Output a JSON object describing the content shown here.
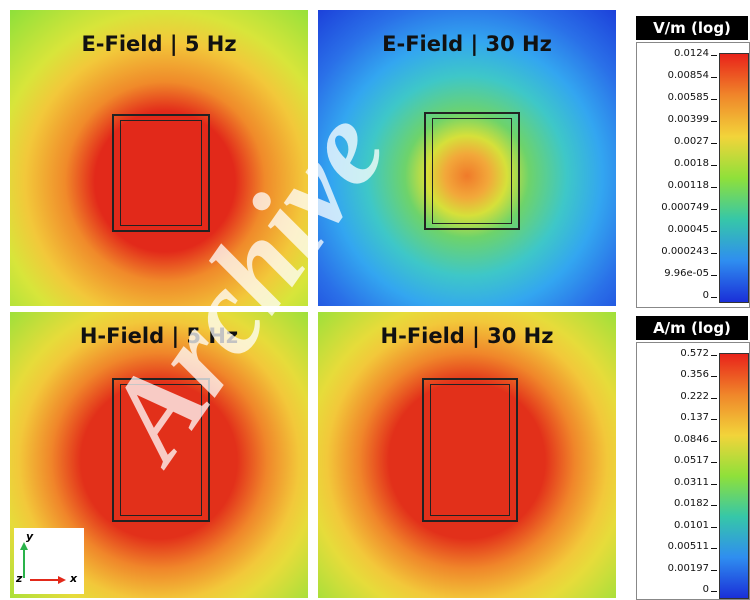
{
  "panels": [
    {
      "title": "E-Field | 5 Hz",
      "colors": {
        "outer": "#8fe03a",
        "mid": "#d8e53a",
        "inner": "#f08a2a",
        "core": "#e2291a"
      }
    },
    {
      "title": "E-Field | 30 Hz",
      "colors": {
        "outer": "#1a3ad8",
        "mid": "#33a6f0",
        "inner": "#6ed36a",
        "core": "#f07a2a"
      }
    },
    {
      "title": "H-Field | 5 Hz",
      "colors": {
        "outer": "#9fe03a",
        "mid": "#e6dc3a",
        "inner": "#f0862a",
        "core": "#e2301a"
      }
    },
    {
      "title": "H-Field | 30 Hz",
      "colors": {
        "outer": "#9fe03a",
        "mid": "#e6dc3a",
        "inner": "#f0862a",
        "core": "#e2301a"
      }
    }
  ],
  "e_colorbar": {
    "unit": "V/m (log)",
    "ticks": [
      "0.0124",
      "0.00854",
      "0.00585",
      "0.00399",
      "0.0027",
      "0.0018",
      "0.00118",
      "0.000749",
      "0.00045",
      "0.000243",
      "9.96e-05",
      "0"
    ]
  },
  "h_colorbar": {
    "unit": "A/m (log)",
    "ticks": [
      "0.572",
      "0.356",
      "0.222",
      "0.137",
      "0.0846",
      "0.0517",
      "0.0311",
      "0.0182",
      "0.0101",
      "0.00511",
      "0.00197",
      "0"
    ]
  },
  "axes": {
    "y": "y",
    "z": "z",
    "x": "x"
  },
  "watermark": "Archive",
  "gradient_colors": [
    "#e8231a",
    "#f0862a",
    "#f2d43a",
    "#8fe03a",
    "#36c7a8",
    "#2f8ef0",
    "#1a2fd8"
  ]
}
